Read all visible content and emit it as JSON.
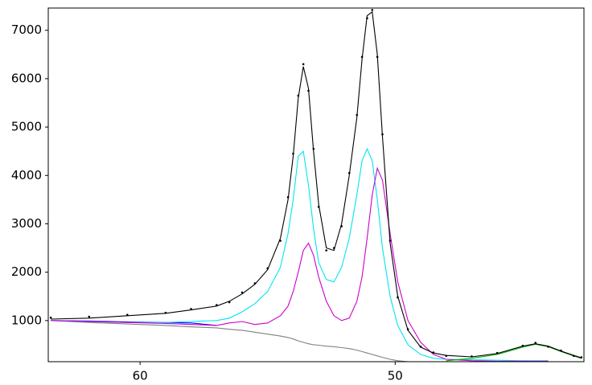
{
  "chart_data": {
    "type": "line",
    "x": [
      63.5,
      62,
      60.5,
      59,
      58,
      57,
      56.5,
      56,
      55.5,
      55,
      54.5,
      54.2,
      54,
      53.8,
      53.6,
      53.4,
      53.2,
      53,
      52.7,
      52.4,
      52.1,
      51.8,
      51.5,
      51.3,
      51.1,
      50.9,
      50.7,
      50.5,
      50.2,
      49.9,
      49.5,
      49,
      48.5,
      48,
      47,
      46,
      45,
      44.5,
      44,
      43.5,
      43,
      42.7
    ],
    "xlim": [
      63.6,
      42.6
    ],
    "xticks": [
      60,
      50
    ],
    "ylim": [
      150,
      7460
    ],
    "yticks": [
      1000,
      2000,
      3000,
      4000,
      5000,
      6000,
      7000
    ],
    "grid": false,
    "series": [
      {
        "color": "#808080",
        "style": "line",
        "values": [
          1000,
          960,
          930,
          900,
          870,
          850,
          820,
          800,
          760,
          720,
          680,
          650,
          620,
          580,
          550,
          520,
          500,
          490,
          470,
          460,
          440,
          420,
          390,
          360,
          330,
          300,
          270,
          240,
          200,
          170,
          150,
          150,
          null,
          null,
          null,
          null,
          null,
          null,
          null,
          null,
          null,
          null
        ]
      },
      {
        "color": "#0000ff",
        "style": "line",
        "values": [
          1000,
          990,
          970,
          960,
          950,
          900,
          null,
          null,
          null,
          null,
          null,
          null,
          null,
          null,
          null,
          null,
          null,
          null,
          null,
          null,
          null,
          null,
          null,
          null,
          null,
          null,
          null,
          null,
          null,
          null,
          null,
          null,
          null,
          null,
          null,
          null,
          null,
          null,
          null,
          null,
          null,
          null
        ]
      },
      {
        "color": "#00e5ee",
        "style": "line",
        "values": [
          1000,
          980,
          960,
          960,
          980,
          1000,
          1050,
          1180,
          1350,
          1600,
          2100,
          2800,
          3500,
          4400,
          4500,
          3800,
          2900,
          2200,
          1850,
          1800,
          2100,
          2700,
          3600,
          4300,
          4550,
          4300,
          3500,
          2500,
          1500,
          900,
          500,
          300,
          220,
          200,
          190,
          180,
          170,
          170,
          170,
          null,
          null,
          null
        ]
      },
      {
        "color": "#cc00cc",
        "style": "line",
        "values": [
          1000,
          980,
          960,
          940,
          920,
          900,
          950,
          980,
          920,
          950,
          1100,
          1300,
          1600,
          2000,
          2450,
          2600,
          2350,
          1900,
          1400,
          1100,
          1000,
          1050,
          1400,
          1900,
          2700,
          3600,
          4150,
          3900,
          2800,
          1800,
          1000,
          550,
          300,
          200,
          170,
          160,
          160,
          160,
          160,
          null,
          null,
          null
        ]
      },
      {
        "color": "#00b000",
        "style": "line",
        "values": [
          null,
          null,
          null,
          null,
          null,
          null,
          null,
          null,
          null,
          null,
          null,
          null,
          null,
          null,
          null,
          null,
          null,
          null,
          null,
          null,
          null,
          null,
          null,
          null,
          null,
          null,
          null,
          null,
          null,
          null,
          null,
          null,
          null,
          170,
          220,
          300,
          450,
          510,
          460,
          360,
          270,
          220
        ]
      },
      {
        "color": "#000000",
        "style": "line",
        "values": [
          1030,
          1050,
          1100,
          1150,
          1220,
          1300,
          1400,
          1550,
          1750,
          2050,
          2700,
          3500,
          4400,
          5600,
          6250,
          5800,
          4500,
          3400,
          2500,
          2450,
          3000,
          4000,
          5200,
          6400,
          7300,
          7380,
          6500,
          4800,
          2600,
          1500,
          800,
          450,
          330,
          280,
          250,
          320,
          470,
          520,
          470,
          370,
          280,
          230
        ]
      },
      {
        "color": "#000000",
        "style": "points",
        "values": [
          1060,
          1080,
          1120,
          1160,
          1240,
          1320,
          1380,
          1580,
          1770,
          2080,
          2650,
          3550,
          4450,
          5650,
          6300,
          5750,
          4550,
          3350,
          2450,
          2500,
          2950,
          4050,
          5250,
          6450,
          7250,
          7420,
          6450,
          4850,
          2650,
          1480,
          820,
          460,
          340,
          270,
          260,
          330,
          480,
          540,
          460,
          380,
          270,
          240
        ]
      }
    ]
  }
}
